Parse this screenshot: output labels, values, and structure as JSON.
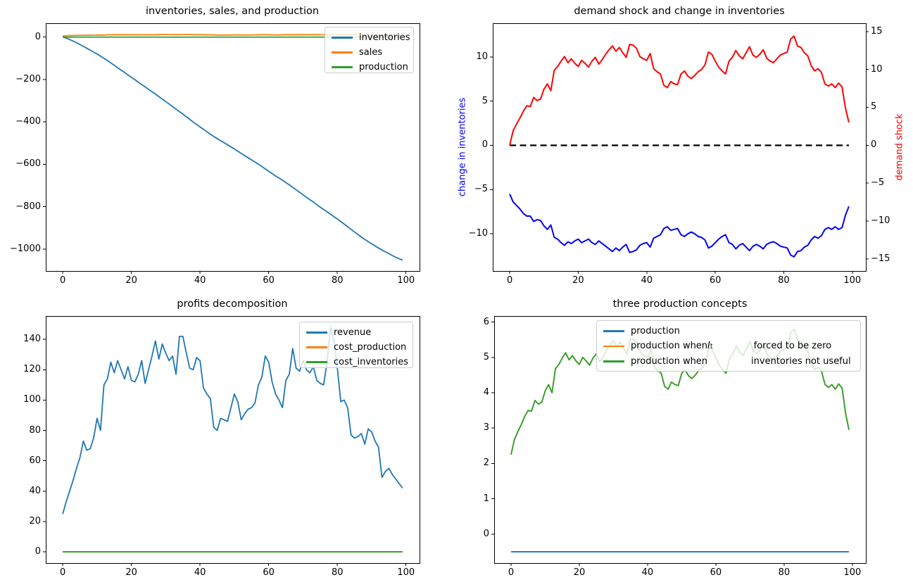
{
  "chart_data": [
    {
      "type": "line",
      "title": "inventories, sales, and production",
      "n_points": 100,
      "xlim": [
        -4.95,
        103.95
      ],
      "ylim": [
        -1103,
        65
      ],
      "xticks": [
        0,
        20,
        40,
        60,
        80,
        100
      ],
      "yticks": [
        0,
        -200,
        -400,
        -600,
        -800,
        -1000
      ],
      "grid": false,
      "legend": {
        "position": "upper right",
        "colors": [
          "#1f77b4",
          "#ff7f0e",
          "#2ca02c"
        ],
        "items": [
          [
            {
              "t": "inventories"
            }
          ],
          [
            {
              "t": "sales"
            }
          ],
          [
            {
              "t": "production"
            }
          ]
        ]
      },
      "series": [
        {
          "name": "inventories",
          "color": "#1f77b4",
          "width": 1.8,
          "values": [
            0,
            -5,
            -12,
            -19,
            -27,
            -35,
            -44,
            -53,
            -62,
            -71,
            -80,
            -90,
            -100,
            -111,
            -122,
            -133,
            -145,
            -156,
            -167,
            -179,
            -190,
            -201,
            -213,
            -224,
            -235,
            -247,
            -258,
            -269,
            -281,
            -292,
            -304,
            -316,
            -328,
            -340,
            -352,
            -363,
            -376,
            -388,
            -401,
            -412,
            -424,
            -435,
            -447,
            -458,
            -469,
            -479,
            -489,
            -498,
            -508,
            -518,
            -528,
            -538,
            -549,
            -559,
            -569,
            -579,
            -589,
            -600,
            -610,
            -622,
            -633,
            -644,
            -655,
            -665,
            -675,
            -686,
            -697,
            -709,
            -720,
            -732,
            -744,
            -756,
            -767,
            -778,
            -790,
            -802,
            -813,
            -824,
            -835,
            -847,
            -858,
            -870,
            -882,
            -894,
            -907,
            -919,
            -931,
            -943,
            -954,
            -965,
            -975,
            -985,
            -995,
            -1004,
            -1013,
            -1021,
            -1030,
            -1038,
            -1045,
            -1052
          ]
        },
        {
          "name": "sales",
          "color": "#ff7f0e",
          "width": 1.8,
          "values": [
            5.0,
            6.0,
            6.7,
            7.2,
            7.8,
            8.0,
            8.2,
            8.7,
            8.4,
            8.5,
            9.2,
            9.6,
            9.2,
            10.5,
            10.7,
            10.8,
            11.0,
            10.8,
            11.0,
            10.8,
            10.7,
            11.0,
            10.8,
            10.7,
            10.9,
            11.0,
            10.7,
            10.9,
            11.2,
            11.5,
            11.7,
            11.4,
            11.6,
            11.3,
            11.1,
            11.8,
            12.1,
            11.9,
            11.2,
            11.1,
            11.0,
            11.5,
            10.5,
            10.1,
            10.0,
            9.2,
            9.0,
            9.4,
            9.3,
            9.2,
            9.8,
            10.1,
            9.7,
            9.4,
            9.6,
            9.9,
            10.0,
            10.3,
            11.1,
            11.0,
            10.5,
            10.1,
            9.9,
            9.7,
            10.5,
            10.8,
            11.3,
            10.9,
            10.8,
            11.2,
            11.6,
            10.9,
            10.8,
            11.0,
            11.4,
            10.8,
            10.6,
            10.6,
            10.8,
            11.1,
            11.2,
            11.3,
            12.0,
            12.2,
            11.6,
            11.4,
            11.0,
            10.9,
            10.0,
            9.7,
            9.8,
            9.5,
            9.0,
            8.8,
            8.9,
            8.6,
            9.0,
            8.7,
            7.2,
            6.5
          ]
        },
        {
          "name": "production",
          "color": "#2ca02c",
          "width": 1.8,
          "constant": -0.5
        }
      ]
    },
    {
      "type": "line",
      "title": "demand shock and change in inventories",
      "n_points": 100,
      "xlim": [
        -4.95,
        103.95
      ],
      "xticks": [
        0,
        20,
        40,
        60,
        80,
        100
      ],
      "grid": false,
      "axes": {
        "left": {
          "ylim": [
            -14.2,
            13.8
          ],
          "ticks": [
            10,
            5,
            0,
            -5,
            -10
          ],
          "label": "change in inventories",
          "color": "#0000ff"
        },
        "right": {
          "ylim": [
            -16.6,
            16.1
          ],
          "ticks": [
            15,
            10,
            5,
            0,
            -5,
            -10,
            -15
          ],
          "label": "demand shock",
          "color": "#ff0000"
        }
      },
      "series": [
        {
          "name": "change in inventories",
          "axis": "left",
          "color": "#0000ff",
          "width": 2,
          "values": [
            -5.5,
            -6.4,
            -6.8,
            -7.2,
            -7.7,
            -8.0,
            -8.0,
            -8.6,
            -8.4,
            -8.5,
            -9.1,
            -9.5,
            -9.0,
            -10.4,
            -10.6,
            -11.0,
            -11.3,
            -10.9,
            -11.1,
            -10.8,
            -10.6,
            -11.0,
            -10.8,
            -10.6,
            -11.0,
            -11.2,
            -10.8,
            -11.1,
            -11.4,
            -11.7,
            -12.0,
            -11.6,
            -11.9,
            -11.5,
            -11.2,
            -12.1,
            -12.0,
            -11.8,
            -11.3,
            -11.1,
            -11.0,
            -11.5,
            -10.5,
            -10.3,
            -10.1,
            -9.4,
            -9.2,
            -9.6,
            -9.5,
            -9.4,
            -10.1,
            -10.3,
            -10.0,
            -9.8,
            -10.0,
            -10.3,
            -10.4,
            -10.7,
            -11.6,
            -11.4,
            -11.0,
            -10.6,
            -10.3,
            -10.1,
            -11.0,
            -11.2,
            -11.7,
            -11.3,
            -11.1,
            -11.5,
            -11.9,
            -11.4,
            -11.2,
            -11.4,
            -11.7,
            -11.2,
            -11.0,
            -10.9,
            -11.1,
            -11.4,
            -11.5,
            -11.6,
            -12.4,
            -12.6,
            -12.0,
            -11.9,
            -11.5,
            -11.3,
            -10.7,
            -10.3,
            -10.5,
            -10.2,
            -9.5,
            -9.3,
            -9.5,
            -9.2,
            -9.5,
            -9.3,
            -7.9,
            -6.9
          ]
        },
        {
          "name": "zero line",
          "axis": "left",
          "color": "#000000",
          "width": 2.2,
          "dashed": true,
          "constant": 0
        },
        {
          "name": "demand shock",
          "axis": "right",
          "color": "#ff0000",
          "width": 2,
          "values": [
            0.0,
            1.9,
            2.8,
            3.6,
            4.5,
            5.2,
            5.1,
            6.3,
            5.9,
            6.1,
            7.4,
            8.1,
            7.2,
            9.9,
            10.4,
            11.1,
            11.7,
            10.9,
            11.4,
            10.8,
            10.4,
            11.2,
            10.8,
            10.3,
            11.1,
            11.6,
            10.7,
            11.3,
            12.0,
            12.6,
            13.1,
            12.4,
            12.9,
            12.2,
            11.6,
            13.3,
            13.2,
            12.8,
            11.7,
            11.4,
            11.2,
            12.1,
            10.1,
            9.7,
            9.4,
            7.9,
            7.6,
            8.4,
            8.1,
            8.0,
            9.4,
            9.8,
            9.1,
            8.8,
            9.2,
            9.7,
            10.0,
            10.6,
            12.3,
            12.0,
            11.1,
            10.3,
            9.8,
            9.4,
            11.1,
            11.6,
            12.5,
            11.8,
            11.4,
            12.2,
            13.0,
            11.9,
            11.6,
            12.0,
            12.6,
            11.5,
            11.1,
            10.9,
            11.4,
            11.9,
            12.1,
            12.3,
            14.0,
            14.4,
            13.1,
            12.9,
            12.2,
            11.8,
            10.5,
            9.8,
            10.1,
            9.6,
            8.1,
            7.8,
            8.1,
            7.6,
            8.2,
            7.7,
            4.9,
            3.0
          ]
        }
      ]
    },
    {
      "type": "line",
      "title": "profits decomposition",
      "n_points": 100,
      "xlim": [
        -4.95,
        103.95
      ],
      "ylim": [
        -7.4,
        155.4
      ],
      "xticks": [
        0,
        20,
        40,
        60,
        80,
        100
      ],
      "yticks": [
        0,
        20,
        40,
        60,
        80,
        100,
        120,
        140
      ],
      "grid": false,
      "legend": {
        "position": "upper right",
        "colors": [
          "#1f77b4",
          "#ff7f0e",
          "#2ca02c"
        ],
        "items": [
          [
            {
              "t": "revenue"
            }
          ],
          [
            {
              "t": "cost_production"
            }
          ],
          [
            {
              "t": "cost_inventories"
            }
          ]
        ]
      },
      "series": [
        {
          "name": "revenue",
          "color": "#1f77b4",
          "width": 1.8,
          "values": [
            25,
            33,
            40,
            47,
            55,
            62,
            73,
            67,
            68,
            75,
            88,
            80,
            110,
            114,
            125,
            118,
            126,
            120,
            114,
            122,
            113,
            112,
            117,
            126,
            111,
            120,
            129,
            139,
            127,
            137,
            131,
            126,
            129,
            117,
            142,
            142,
            131,
            121,
            120,
            128,
            126,
            108,
            104,
            101,
            82,
            80,
            88,
            87,
            86,
            95,
            104,
            99,
            87,
            91,
            94,
            95,
            98,
            110,
            115,
            129,
            125,
            112,
            104,
            100,
            95,
            113,
            117,
            134,
            121,
            119,
            126,
            120,
            118,
            122,
            113,
            111,
            110,
            125,
            148,
            139,
            121,
            99,
            100,
            95,
            77,
            75,
            76,
            78,
            71,
            81,
            79,
            73,
            69,
            49,
            53,
            55,
            51,
            48,
            45,
            42
          ]
        },
        {
          "name": "cost_production",
          "color": "#ff7f0e",
          "width": 1.8,
          "constant": 0
        },
        {
          "name": "cost_inventories",
          "color": "#2ca02c",
          "width": 1.8,
          "constant": 0
        }
      ]
    },
    {
      "type": "line",
      "title": "three production concepts",
      "n_points": 100,
      "xlim": [
        -4.95,
        103.95
      ],
      "ylim": [
        -0.82,
        6.17
      ],
      "xticks": [
        0,
        20,
        40,
        60,
        80,
        100
      ],
      "yticks": [
        0,
        1,
        2,
        3,
        4,
        5,
        6
      ],
      "grid": false,
      "legend": {
        "position": "upper center",
        "colors": [
          "#1f77b4",
          "#ff7f0e",
          "#2ca02c"
        ],
        "items": [
          [
            {
              "t": "production"
            }
          ],
          [
            {
              "t": "production when "
            },
            {
              "math": "I",
              "sub": "t"
            },
            {
              "gap": 58
            },
            {
              "t": "forced to be zero"
            }
          ],
          [
            {
              "t": "production when"
            },
            {
              "gap": 62
            },
            {
              "t": "inventories not useful"
            }
          ]
        ]
      },
      "series": [
        {
          "name": "production",
          "color": "#1f77b4",
          "width": 1.8,
          "constant": -0.5
        },
        {
          "name": "production when I_t forced to be zero",
          "color": "#ff7f0e",
          "width": 1.8,
          "same_as": 2
        },
        {
          "name": "production when inventories not useful",
          "color": "#2ca02c",
          "width": 1.8,
          "values": [
            2.25,
            2.68,
            2.9,
            3.1,
            3.33,
            3.5,
            3.48,
            3.78,
            3.68,
            3.73,
            4.05,
            4.23,
            4.0,
            4.68,
            4.8,
            4.98,
            5.13,
            4.93,
            5.05,
            4.9,
            4.8,
            5.0,
            4.9,
            4.78,
            4.98,
            5.1,
            4.88,
            5.03,
            5.2,
            5.35,
            5.48,
            5.3,
            5.43,
            5.25,
            5.1,
            5.53,
            5.5,
            5.4,
            5.13,
            5.05,
            5.0,
            5.23,
            4.73,
            4.63,
            4.55,
            4.18,
            4.1,
            4.3,
            4.23,
            4.2,
            4.55,
            4.65,
            4.48,
            4.4,
            4.5,
            4.63,
            4.7,
            4.85,
            5.28,
            5.2,
            4.98,
            4.78,
            4.65,
            4.55,
            4.98,
            5.1,
            5.33,
            5.15,
            5.05,
            5.25,
            5.45,
            5.18,
            5.1,
            5.2,
            5.35,
            5.08,
            4.98,
            4.93,
            5.05,
            5.18,
            5.23,
            5.28,
            5.7,
            5.8,
            5.48,
            5.43,
            5.25,
            5.15,
            4.83,
            4.65,
            4.73,
            4.6,
            4.23,
            4.15,
            4.23,
            4.1,
            4.25,
            4.13,
            3.43,
            2.95
          ]
        }
      ]
    }
  ]
}
